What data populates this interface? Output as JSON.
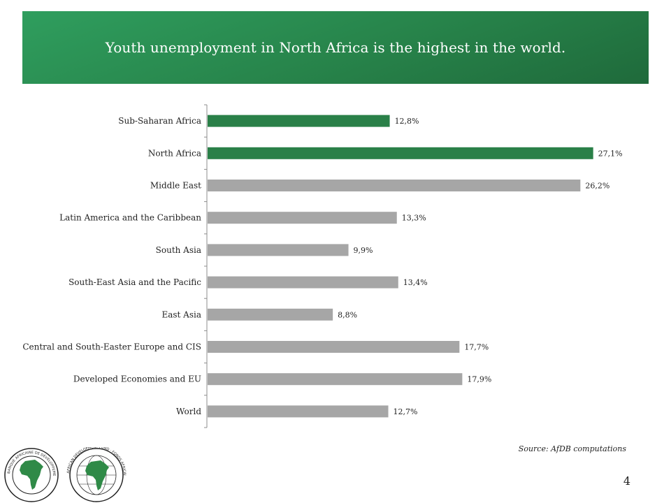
{
  "slide": {
    "title": "Youth unemployment in North Africa is the highest in the world.",
    "source": "Source: AfDB computations",
    "page_number": "4"
  },
  "colors": {
    "banner": "#27834a",
    "highlight_bar": "#2a8048",
    "default_bar": "#a6a6a6",
    "axis": "#8c8c8c"
  },
  "logos": [
    {
      "name": "afdb-logo-french",
      "text": "BANQUE AFRICAINE DE DÉVELOPPEMENT · AFRICAN DEVELOPMENT BANK"
    },
    {
      "name": "adf-logo",
      "text": "AFRICAN DEVELOPMENT FUND · FONDS AFRICAIN DE DÉVELOPPEMENT"
    }
  ],
  "chart_data": {
    "type": "bar",
    "orientation": "horizontal",
    "categories": [
      "Sub-Saharan Africa",
      "North Africa",
      "Middle East",
      "Latin America and the Caribbean",
      "South Asia",
      "South-East Asia and the Pacific",
      "East Asia",
      "Central and South-Easter Europe and CIS",
      "Developed Economies and EU",
      "World"
    ],
    "values": [
      12.8,
      27.1,
      26.2,
      13.3,
      9.9,
      13.4,
      8.8,
      17.7,
      17.9,
      12.7
    ],
    "value_labels": [
      "12,8%",
      "27,1%",
      "26,2%",
      "13,3%",
      "9,9%",
      "13,4%",
      "8,8%",
      "17,7%",
      "17,9%",
      "12,7%"
    ],
    "highlighted": [
      true,
      true,
      false,
      false,
      false,
      false,
      false,
      false,
      false,
      false
    ],
    "xlim": [
      0,
      28
    ],
    "grid": false,
    "legend": "none"
  }
}
